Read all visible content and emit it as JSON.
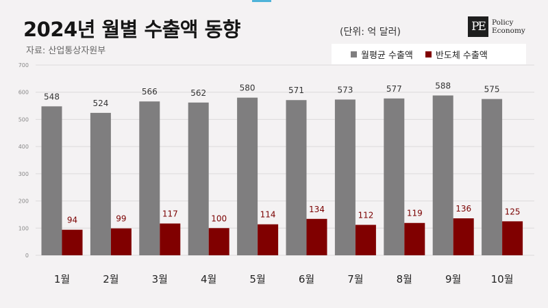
{
  "title": "2024년 월별 수출액 동향",
  "source": "자료: 산업통상자원부",
  "unit": "(단위: 억 달러)",
  "logo": {
    "line1": "Policy",
    "line2": "Economy",
    "mark": "PE"
  },
  "colors": {
    "total": "#7f7e7f",
    "semiconductor": "#800000",
    "grid": "#dcdadb",
    "tick": "#888888"
  },
  "chart_data": {
    "type": "bar",
    "categories": [
      "1월",
      "2월",
      "3월",
      "4월",
      "5월",
      "6월",
      "7월",
      "8월",
      "9월",
      "10월"
    ],
    "series": [
      {
        "name": "월평균 수출액",
        "values": [
          548,
          524,
          566,
          562,
          580,
          571,
          573,
          577,
          588,
          575
        ]
      },
      {
        "name": "반도체 수출액",
        "values": [
          94,
          99,
          117,
          100,
          114,
          134,
          112,
          119,
          136,
          125
        ]
      }
    ],
    "ylim": [
      0,
      700
    ],
    "yticks": [
      "0",
      "100",
      "200",
      "300",
      "400",
      "500",
      "600",
      "700"
    ],
    "grid": true,
    "legend_position": "top-right"
  }
}
